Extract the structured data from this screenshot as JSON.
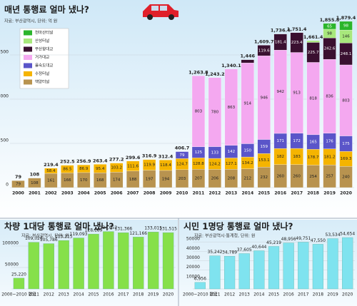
{
  "chart_data": [
    {
      "type": "stacked_bar",
      "title": "매년 통행료 얼마 냈나?",
      "source": "자료: 부산광역시, 단위: 억 원",
      "categories": [
        "2000",
        "2001",
        "2002",
        "2003",
        "2004",
        "2005",
        "2006",
        "2007",
        "2008",
        "2009",
        "2010",
        "2011",
        "2012",
        "2013",
        "2014",
        "2015",
        "2016",
        "2017",
        "2018",
        "2019",
        "2020"
      ],
      "series": [
        {
          "name": "백양터널",
          "color": "#b8934f",
          "values": [
            79,
            108,
            161,
            166,
            170,
            168,
            174,
            188,
            197,
            194,
            203,
            207,
            206,
            208,
            212,
            232,
            260,
            260,
            254,
            257,
            240
          ]
        },
        {
          "name": "수정터널",
          "color": "#f5b400",
          "values": [
            null,
            null,
            58.4,
            86.5,
            86.9,
            95.4,
            103.2,
            111.6,
            119.9,
            118.4,
            124.7,
            128.8,
            124.2,
            127.1,
            134.2,
            153.1,
            182,
            183,
            178.7,
            181.2,
            169.3
          ]
        },
        {
          "name": "을숙도대교",
          "color": "#5a55c9",
          "values": [
            null,
            null,
            null,
            null,
            null,
            null,
            null,
            null,
            null,
            null,
            79,
            125,
            133,
            142,
            150,
            159,
            171,
            172,
            165,
            176,
            175
          ]
        },
        {
          "name": "거가대교",
          "color": "#f4a8f0",
          "values": [
            null,
            null,
            null,
            null,
            null,
            null,
            null,
            null,
            null,
            null,
            null,
            803,
            780,
            863,
            914,
            946,
            942,
            913,
            818,
            836,
            803
          ]
        },
        {
          "name": "부산항대교",
          "color": "#3a1030",
          "values": [
            null,
            null,
            null,
            null,
            null,
            null,
            null,
            null,
            null,
            null,
            null,
            null,
            null,
            null,
            35.8,
            119.6,
            181.4,
            223.4,
            225.7,
            242.6,
            248.1
          ]
        },
        {
          "name": "산성터널",
          "color": "#a8e87c",
          "values": [
            null,
            null,
            null,
            null,
            null,
            null,
            null,
            null,
            null,
            null,
            null,
            null,
            null,
            null,
            null,
            null,
            null,
            null,
            20,
            98,
            146
          ]
        },
        {
          "name": "천마산터널",
          "color": "#2bb52b",
          "values": [
            null,
            null,
            null,
            null,
            null,
            null,
            null,
            null,
            null,
            null,
            null,
            null,
            null,
            null,
            null,
            null,
            null,
            null,
            null,
            65,
            98
          ]
        }
      ],
      "totals": [
        79,
        108,
        219.4,
        252.5,
        256.9,
        263.4,
        277.2,
        299.6,
        316.9,
        312.4,
        406.7,
        1263.8,
        1243.2,
        1340.1,
        1446,
        1609.7,
        1736.4,
        1751.4,
        1661.4,
        1855.8,
        1879.4
      ],
      "total_labels": [
        "79",
        "108",
        "219.4",
        "252.5",
        "256.9",
        "263.4",
        "277.2",
        "299.6",
        "316.9",
        "312.4",
        "406.7",
        "1,263.8",
        "1,243.2",
        "1,340.1",
        "1,446",
        "1,609.7",
        "1,736.4",
        "1,751.4",
        "1,661.4",
        "1,855.8",
        "1,879.4"
      ],
      "ylim": [
        0,
        2000
      ],
      "yticks": [
        0,
        500,
        1000,
        1500
      ],
      "grid": true
    },
    {
      "type": "bar",
      "title": "차량 1대당 통행료 얼마 냈나?",
      "source": "자료: 부산광역시, 단위: 원",
      "color": "#86e04a",
      "categories": [
        "2000~2010 평균",
        "2011",
        "2012",
        "2013",
        "2014",
        "2015",
        "2016",
        "2017",
        "2018",
        "2019",
        "2020"
      ],
      "values": [
        25220,
        109026,
        105786,
        113215,
        119093,
        128189,
        134052,
        131366,
        121166,
        133015,
        131515
      ],
      "value_labels": [
        "25,220",
        "109,026",
        "105,786",
        "113,215",
        "119,093",
        "128,189",
        "134,052",
        "131,366",
        "121,166",
        "133,015",
        "131,515"
      ],
      "ylim": [
        0,
        150000
      ],
      "yticks": [
        0,
        50000,
        100000
      ],
      "grid": true
    },
    {
      "type": "bar",
      "title": "시민 1명당 통행료 얼마 냈나?",
      "source": "자료: 부산광역시·통계청, 단위: 원",
      "color": "#7fe3ef",
      "categories": [
        "2000~2010 평균",
        "2011",
        "2012",
        "2013",
        "2014",
        "2015",
        "2016",
        "2017",
        "2018",
        "2019",
        "2020"
      ],
      "values": [
        6956,
        35242,
        34789,
        37605,
        40644,
        45219,
        48956,
        49751,
        47550,
        53534,
        54654
      ],
      "value_labels": [
        "6,956",
        "35,242",
        "34,789",
        "37,605",
        "40,644",
        "45,219",
        "48,956",
        "49,751",
        "47,550",
        "53,534",
        "54,654"
      ],
      "ylim": [
        0,
        60000
      ],
      "yticks": [
        0,
        10000,
        20000,
        30000,
        40000,
        50000
      ],
      "grid": true
    }
  ]
}
